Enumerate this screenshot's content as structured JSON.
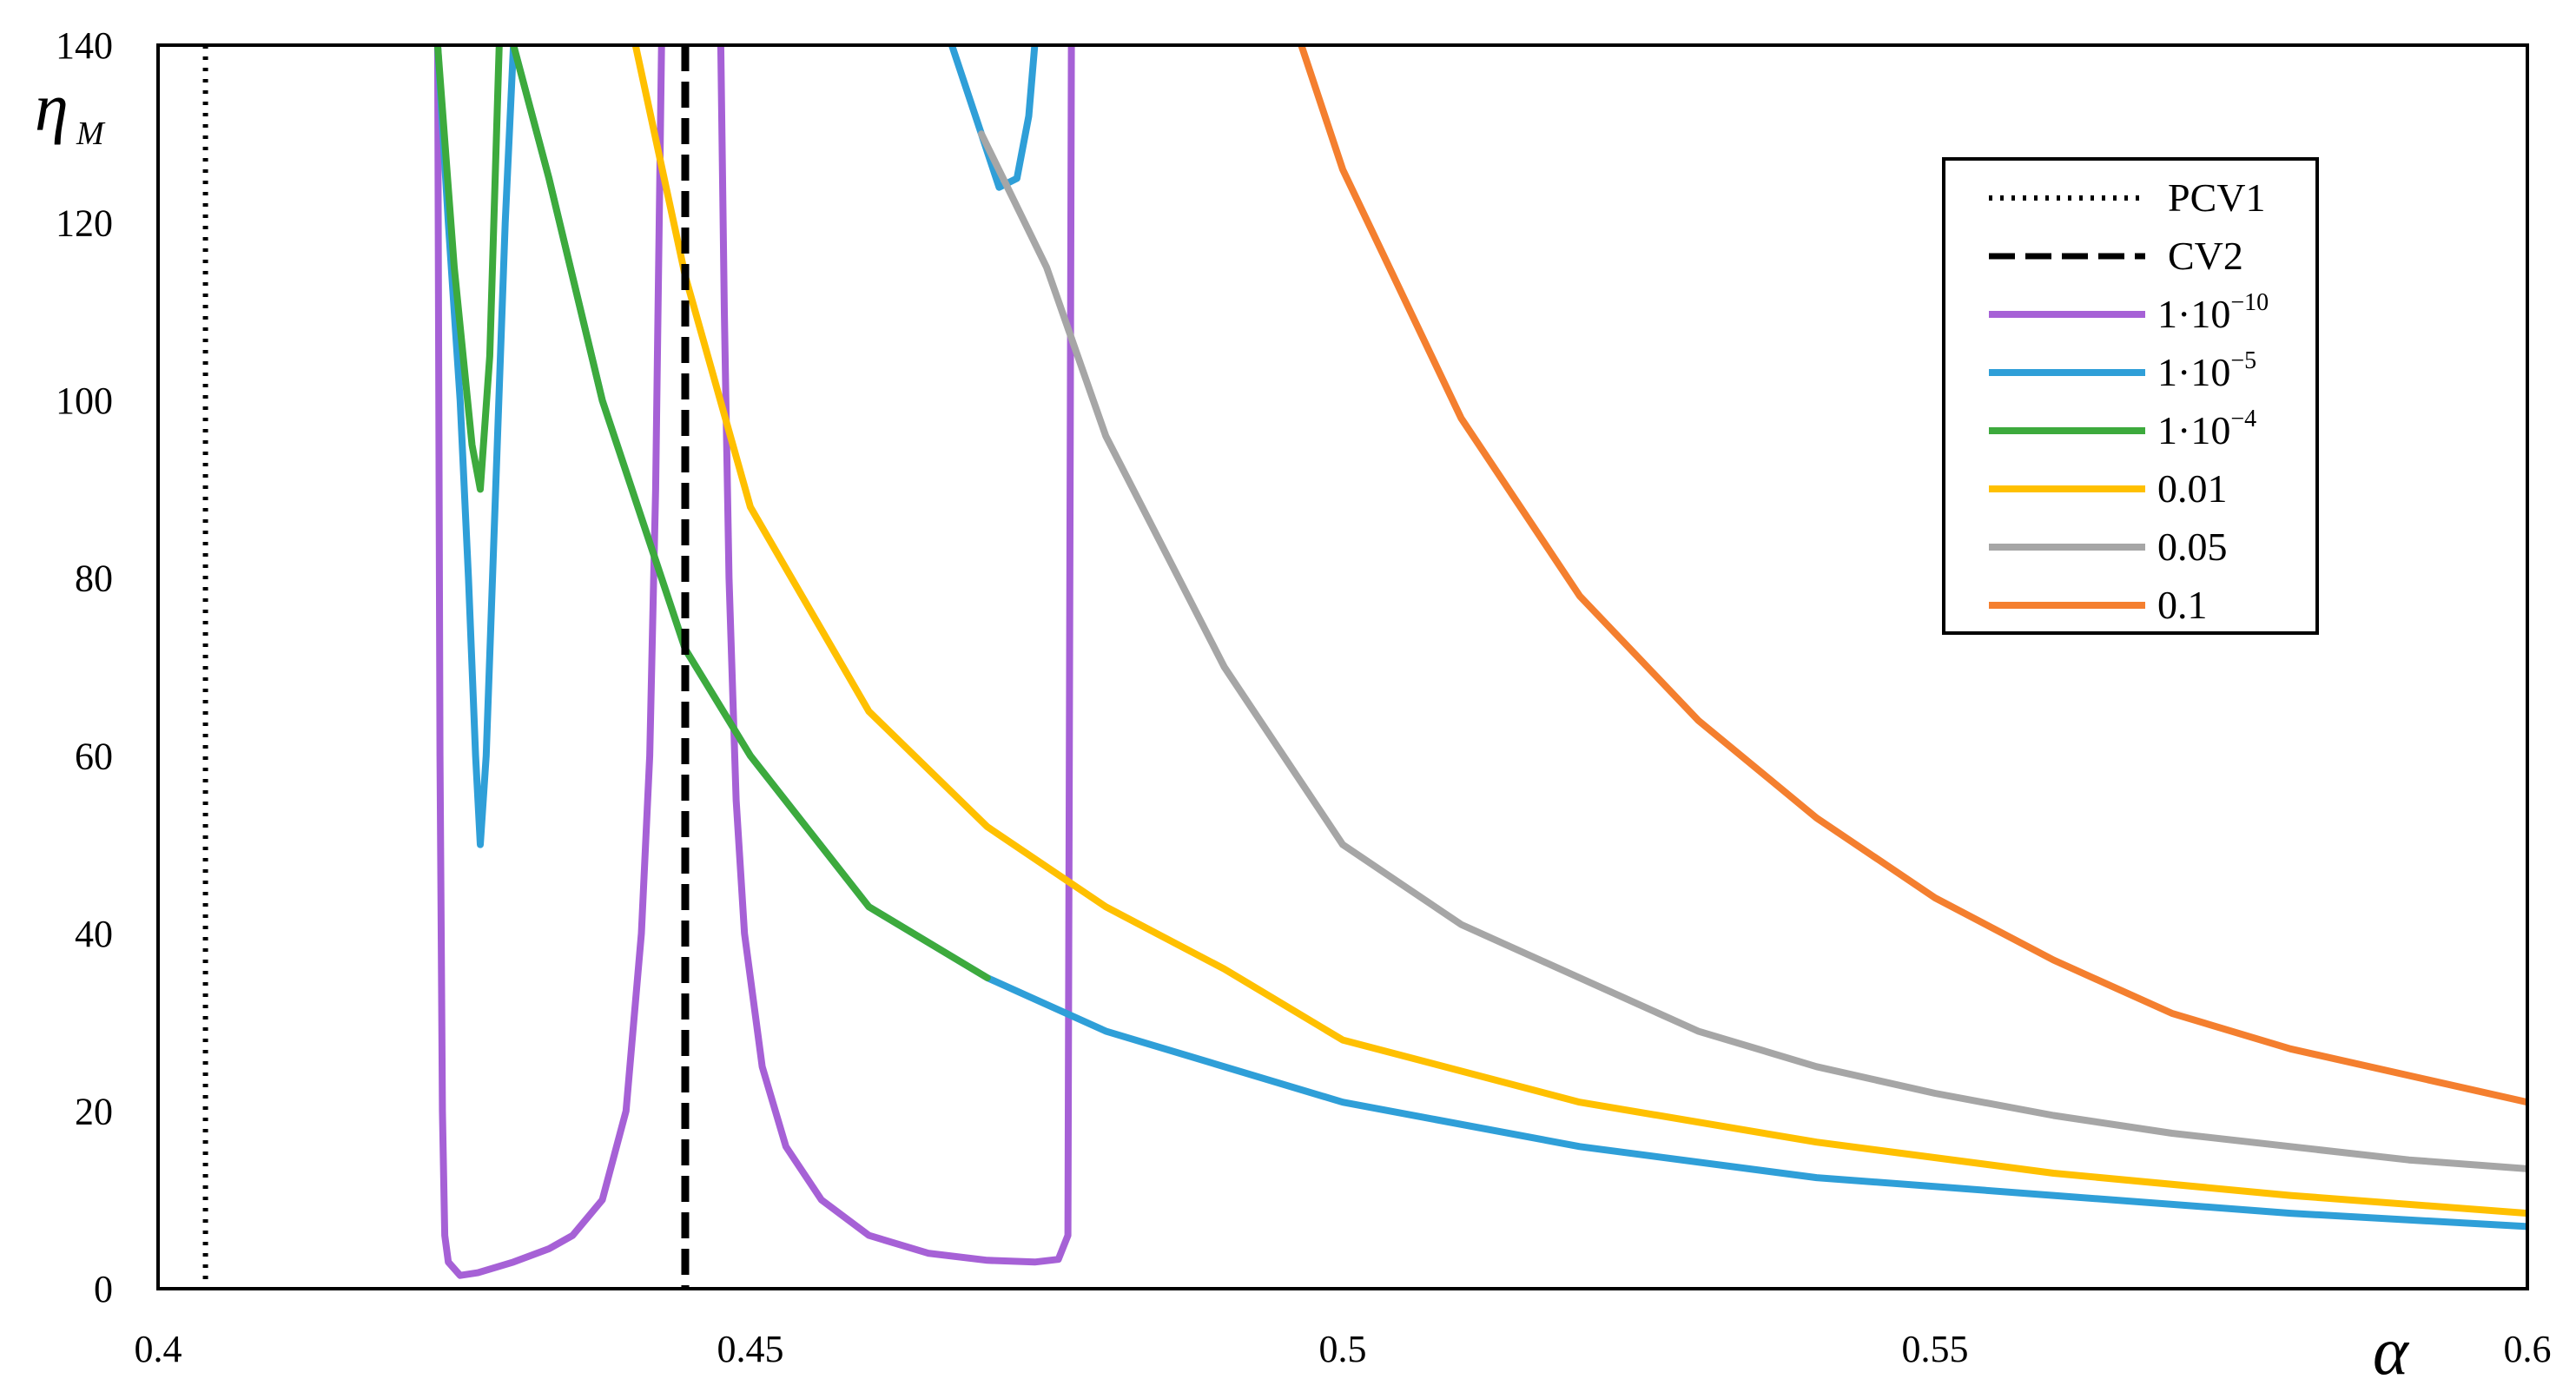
{
  "chart_data": {
    "type": "line",
    "title": "",
    "xlabel": "α",
    "ylabel": {
      "main": "η",
      "sub": "M"
    },
    "xlim": [
      0.4,
      0.6
    ],
    "ylim": [
      0,
      140
    ],
    "xticks": [
      {
        "value": 0.4,
        "label": "0.4"
      },
      {
        "value": 0.45,
        "label": "0.45"
      },
      {
        "value": 0.5,
        "label": "0.5"
      },
      {
        "value": 0.55,
        "label": "0.55"
      },
      {
        "value": 0.6,
        "label": "0.6"
      }
    ],
    "yticks": [
      {
        "value": 0,
        "label": "0"
      },
      {
        "value": 20,
        "label": "20"
      },
      {
        "value": 40,
        "label": "40"
      },
      {
        "value": 60,
        "label": "60"
      },
      {
        "value": 80,
        "label": "80"
      },
      {
        "value": 100,
        "label": "100"
      },
      {
        "value": 120,
        "label": "120"
      },
      {
        "value": 140,
        "label": "140"
      }
    ],
    "grid": false,
    "legend_position": "top-right",
    "vlines": [
      {
        "name": "PCV1",
        "x": 0.404,
        "color": "#000000",
        "style": "dotted"
      },
      {
        "name": "CV2",
        "x": 0.4445,
        "color": "#000000",
        "style": "dashed"
      }
    ],
    "series": [
      {
        "name": "1·10−10",
        "label_base": "1·10",
        "label_exp": "−10",
        "color": "#a661d6",
        "segments": [
          [
            [
              0.4236,
              140
            ],
            [
              0.4238,
              60
            ],
            [
              0.424,
              20
            ],
            [
              0.4242,
              6
            ],
            [
              0.4245,
              3
            ],
            [
              0.4255,
              1.5
            ],
            [
              0.427,
              1.8
            ],
            [
              0.43,
              3
            ],
            [
              0.433,
              4.5
            ],
            [
              0.435,
              6
            ],
            [
              0.4375,
              10
            ],
            [
              0.4395,
              20
            ],
            [
              0.4408,
              40
            ],
            [
              0.4415,
              60
            ],
            [
              0.442,
              90
            ],
            [
              0.4423,
              120
            ],
            [
              0.4425,
              140
            ]
          ],
          [
            [
              0.4475,
              140
            ],
            [
              0.4478,
              110
            ],
            [
              0.4482,
              80
            ],
            [
              0.4488,
              55
            ],
            [
              0.4495,
              40
            ],
            [
              0.451,
              25
            ],
            [
              0.453,
              16
            ],
            [
              0.456,
              10
            ],
            [
              0.46,
              6
            ],
            [
              0.465,
              4
            ],
            [
              0.47,
              3.2
            ],
            [
              0.474,
              3
            ],
            [
              0.476,
              3.3
            ],
            [
              0.4768,
              6
            ],
            [
              0.4771,
              140
            ]
          ]
        ]
      },
      {
        "name": "1·10−5",
        "label_base": "1·10",
        "label_exp": "−5",
        "color": "#2f9fd8",
        "segments": [
          [
            [
              0.4236,
              140
            ],
            [
              0.4245,
              120
            ],
            [
              0.4255,
              100
            ],
            [
              0.4262,
              80
            ],
            [
              0.4268,
              60
            ],
            [
              0.4272,
              50
            ],
            [
              0.4277,
              60
            ],
            [
              0.4285,
              90
            ],
            [
              0.4293,
              120
            ],
            [
              0.43,
              140
            ],
            [
              0.433,
              125
            ],
            [
              0.4375,
              100
            ],
            [
              0.4445,
              72
            ],
            [
              0.45,
              60
            ],
            [
              0.46,
              43
            ],
            [
              0.47,
              35
            ],
            [
              0.48,
              29
            ],
            [
              0.5,
              21
            ],
            [
              0.52,
              16
            ],
            [
              0.54,
              12.5
            ],
            [
              0.56,
              10.5
            ],
            [
              0.58,
              8.5
            ],
            [
              0.6,
              7
            ]
          ],
          [
            [
              0.467,
              140
            ],
            [
              0.4695,
              130
            ],
            [
              0.471,
              124
            ],
            [
              0.4725,
              125
            ],
            [
              0.4735,
              132
            ],
            [
              0.474,
              140
            ]
          ]
        ]
      },
      {
        "name": "1·10−4",
        "label_base": "1·10",
        "label_exp": "−4",
        "color": "#3daa3d",
        "segments": [
          [
            [
              0.4236,
              140
            ],
            [
              0.425,
              115
            ],
            [
              0.4265,
              95
            ],
            [
              0.4272,
              90
            ],
            [
              0.428,
              105
            ],
            [
              0.4288,
              140
            ]
          ],
          [
            [
              0.43,
              140
            ],
            [
              0.433,
              125
            ],
            [
              0.4375,
              100
            ],
            [
              0.4445,
              72
            ],
            [
              0.45,
              60
            ],
            [
              0.46,
              43
            ],
            [
              0.47,
              35
            ]
          ]
        ]
      },
      {
        "name": "0.01",
        "color": "#ffc000",
        "segments": [
          [
            [
              0.4403,
              140
            ],
            [
              0.4445,
              114
            ],
            [
              0.45,
              88
            ],
            [
              0.46,
              65
            ],
            [
              0.47,
              52
            ],
            [
              0.48,
              43
            ],
            [
              0.49,
              36
            ],
            [
              0.5,
              28
            ],
            [
              0.52,
              21
            ],
            [
              0.54,
              16.5
            ],
            [
              0.56,
              13
            ],
            [
              0.58,
              10.5
            ],
            [
              0.6,
              8.5
            ]
          ]
        ]
      },
      {
        "name": "0.05",
        "color": "#a6a6a6",
        "segments": [
          [
            [
              0.4695,
              130
            ],
            [
              0.475,
              115
            ],
            [
              0.48,
              96
            ],
            [
              0.49,
              70
            ],
            [
              0.5,
              50
            ],
            [
              0.51,
              41
            ],
            [
              0.52,
              35
            ],
            [
              0.53,
              29
            ],
            [
              0.54,
              25
            ],
            [
              0.55,
              22
            ],
            [
              0.56,
              19.5
            ],
            [
              0.57,
              17.5
            ],
            [
              0.58,
              16
            ],
            [
              0.59,
              14.5
            ],
            [
              0.6,
              13.5
            ]
          ]
        ]
      },
      {
        "name": "0.1",
        "color": "#f47f2f",
        "segments": [
          [
            [
              0.4965,
              140
            ],
            [
              0.5,
              126
            ],
            [
              0.51,
              98
            ],
            [
              0.52,
              78
            ],
            [
              0.53,
              64
            ],
            [
              0.54,
              53
            ],
            [
              0.55,
              44
            ],
            [
              0.56,
              37
            ],
            [
              0.57,
              31
            ],
            [
              0.58,
              27
            ],
            [
              0.59,
              24
            ],
            [
              0.6,
              21
            ]
          ]
        ]
      }
    ]
  }
}
